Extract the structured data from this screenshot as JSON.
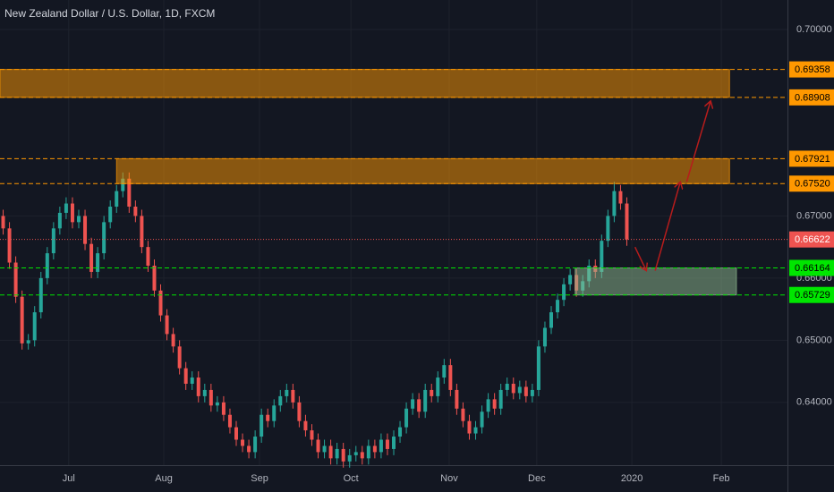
{
  "chart_data": {
    "type": "candlestick",
    "title": "New Zealand Dollar / U.S. Dollar, 1D, FXCM",
    "up_color": "#26a69a",
    "down_color": "#ef5350",
    "grid": true,
    "xlim": [
      -0.5,
      124.5
    ],
    "xticks": [
      {
        "value": 10.4,
        "label": "Jul"
      },
      {
        "value": 25.5,
        "label": "Aug"
      },
      {
        "value": 40.7,
        "label": "Sep"
      },
      {
        "value": 55.2,
        "label": "Oct"
      },
      {
        "value": 70.8,
        "label": "Nov"
      },
      {
        "value": 84.7,
        "label": "Dec"
      },
      {
        "value": 99.8,
        "label": "2020"
      },
      {
        "value": 114,
        "label": "Feb"
      }
    ],
    "ylim": [
      0.6299,
      0.70475
    ],
    "yticks": [
      {
        "value": 0.7,
        "label": "0.70000"
      },
      {
        "value": 0.67,
        "label": "0.67000"
      },
      {
        "value": 0.66,
        "label": "0.66000"
      },
      {
        "value": 0.65,
        "label": "0.65000"
      },
      {
        "value": 0.64,
        "label": "0.64000"
      }
    ],
    "open": [
      0.67,
      0.668,
      0.6625,
      0.657,
      0.6495,
      0.65,
      0.6545,
      0.66,
      0.664,
      0.668,
      0.6705,
      0.672,
      0.669,
      0.67,
      0.6655,
      0.661,
      0.664,
      0.669,
      0.6715,
      0.674,
      0.676,
      0.6715,
      0.67,
      0.665,
      0.662,
      0.658,
      0.654,
      0.651,
      0.649,
      0.6455,
      0.643,
      0.644,
      0.641,
      0.642,
      0.6395,
      0.64,
      0.638,
      0.636,
      0.634,
      0.633,
      0.632,
      0.6345,
      0.638,
      0.637,
      0.6395,
      0.641,
      0.642,
      0.64,
      0.637,
      0.6355,
      0.634,
      0.632,
      0.633,
      0.631,
      0.6325,
      0.6305,
      0.6315,
      0.632,
      0.631,
      0.633,
      0.632,
      0.634,
      0.6325,
      0.6345,
      0.636,
      0.639,
      0.6405,
      0.6385,
      0.642,
      0.641,
      0.644,
      0.646,
      0.642,
      0.639,
      0.637,
      0.635,
      0.636,
      0.6385,
      0.6405,
      0.639,
      0.642,
      0.643,
      0.6415,
      0.6425,
      0.641,
      0.642,
      0.649,
      0.652,
      0.6545,
      0.6565,
      0.659,
      0.6605,
      0.658,
      0.6595,
      0.662,
      0.661,
      0.666,
      0.67,
      0.674,
      0.672
    ],
    "close": [
      0.668,
      0.6625,
      0.657,
      0.6495,
      0.65,
      0.6545,
      0.66,
      0.664,
      0.668,
      0.6705,
      0.672,
      0.669,
      0.67,
      0.6655,
      0.661,
      0.664,
      0.669,
      0.6715,
      0.674,
      0.676,
      0.6715,
      0.67,
      0.665,
      0.662,
      0.658,
      0.654,
      0.651,
      0.649,
      0.6455,
      0.643,
      0.644,
      0.641,
      0.642,
      0.6395,
      0.64,
      0.638,
      0.636,
      0.634,
      0.633,
      0.632,
      0.6345,
      0.638,
      0.637,
      0.6395,
      0.641,
      0.642,
      0.64,
      0.637,
      0.6355,
      0.634,
      0.632,
      0.633,
      0.631,
      0.6325,
      0.6305,
      0.6315,
      0.632,
      0.631,
      0.633,
      0.632,
      0.634,
      0.6325,
      0.6345,
      0.636,
      0.639,
      0.6405,
      0.6385,
      0.642,
      0.641,
      0.644,
      0.646,
      0.642,
      0.639,
      0.637,
      0.635,
      0.636,
      0.6385,
      0.6405,
      0.639,
      0.642,
      0.643,
      0.6415,
      0.6425,
      0.641,
      0.642,
      0.649,
      0.652,
      0.6545,
      0.6565,
      0.659,
      0.6605,
      0.658,
      0.6595,
      0.662,
      0.661,
      0.666,
      0.67,
      0.674,
      0.672,
      0.66622
    ],
    "high": [
      0.671,
      0.669,
      0.6635,
      0.658,
      0.651,
      0.6555,
      0.661,
      0.665,
      0.669,
      0.6715,
      0.673,
      0.673,
      0.671,
      0.671,
      0.6665,
      0.665,
      0.67,
      0.6725,
      0.675,
      0.677,
      0.677,
      0.6725,
      0.671,
      0.666,
      0.663,
      0.659,
      0.655,
      0.652,
      0.65,
      0.6465,
      0.645,
      0.645,
      0.643,
      0.643,
      0.641,
      0.641,
      0.639,
      0.637,
      0.635,
      0.634,
      0.6355,
      0.639,
      0.639,
      0.6405,
      0.642,
      0.643,
      0.643,
      0.641,
      0.638,
      0.6365,
      0.635,
      0.634,
      0.634,
      0.6335,
      0.6335,
      0.6325,
      0.633,
      0.633,
      0.634,
      0.634,
      0.635,
      0.635,
      0.6355,
      0.637,
      0.64,
      0.6415,
      0.6415,
      0.643,
      0.643,
      0.645,
      0.647,
      0.647,
      0.643,
      0.64,
      0.638,
      0.637,
      0.6395,
      0.6415,
      0.6415,
      0.643,
      0.644,
      0.644,
      0.6435,
      0.6435,
      0.643,
      0.65,
      0.653,
      0.6555,
      0.6575,
      0.66,
      0.6615,
      0.6615,
      0.6605,
      0.663,
      0.663,
      0.667,
      0.671,
      0.6755,
      0.675,
      0.673
    ],
    "low": [
      0.667,
      0.6615,
      0.656,
      0.6485,
      0.6485,
      0.649,
      0.6535,
      0.659,
      0.663,
      0.667,
      0.6695,
      0.668,
      0.668,
      0.6645,
      0.66,
      0.66,
      0.663,
      0.668,
      0.6705,
      0.673,
      0.6705,
      0.669,
      0.664,
      0.661,
      0.657,
      0.653,
      0.65,
      0.648,
      0.6445,
      0.642,
      0.642,
      0.64,
      0.64,
      0.6385,
      0.6385,
      0.637,
      0.635,
      0.633,
      0.632,
      0.631,
      0.631,
      0.6335,
      0.636,
      0.636,
      0.6385,
      0.64,
      0.639,
      0.636,
      0.6345,
      0.633,
      0.631,
      0.631,
      0.63,
      0.63,
      0.6295,
      0.6295,
      0.6305,
      0.63,
      0.63,
      0.631,
      0.631,
      0.6315,
      0.6315,
      0.6335,
      0.635,
      0.638,
      0.6375,
      0.6375,
      0.64,
      0.64,
      0.643,
      0.641,
      0.638,
      0.636,
      0.634,
      0.634,
      0.635,
      0.6375,
      0.638,
      0.638,
      0.641,
      0.6405,
      0.6405,
      0.64,
      0.64,
      0.641,
      0.648,
      0.651,
      0.6535,
      0.6555,
      0.658,
      0.657,
      0.657,
      0.6585,
      0.66,
      0.66,
      0.665,
      0.669,
      0.671,
      0.6652
    ],
    "zones": [
      {
        "x_from": -0.5,
        "x_to": 115.3,
        "low": 0.68908,
        "high": 0.69358,
        "color": "#ff9800"
      },
      {
        "x_from": 18,
        "x_to": 115.3,
        "low": 0.6752,
        "high": 0.67921,
        "color": "#ff9800"
      },
      {
        "x_from": 90.8,
        "x_to": 116.4,
        "low": 0.65729,
        "high": 0.66164,
        "color": "#8fbc8f"
      }
    ],
    "levels": [
      {
        "price": 0.69358,
        "color": "#ff9800",
        "style": "dashed"
      },
      {
        "price": 0.68908,
        "color": "#ff9800",
        "style": "dashed"
      },
      {
        "price": 0.67921,
        "color": "#ff9800",
        "style": "dashed"
      },
      {
        "price": {
          "value": 0.6752,
          "label": "0.67520"
        },
        "color": "#ff9800",
        "style": "dashed"
      },
      {
        "price": 0.66622,
        "color": "#ef5350",
        "style": "dotted"
      },
      {
        "price": 0.66164,
        "color": "#00e600",
        "style": "dashed"
      },
      {
        "price": 0.65729,
        "color": "#00e600",
        "style": "dashed"
      }
    ],
    "arrow_color": "#b71c1c",
    "arrows": [
      {
        "x": [
          100.3,
          102.1
        ],
        "y": [
          0.665,
          0.6612
        ]
      },
      {
        "x": [
          103.5,
          107.5
        ],
        "y": [
          0.6612,
          0.6755
        ]
      },
      {
        "x": [
          108.5,
          112.3
        ],
        "y": [
          0.6755,
          0.6885
        ]
      }
    ]
  }
}
